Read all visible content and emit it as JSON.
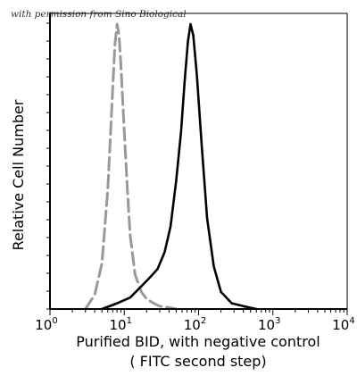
{
  "watermark": "with permission from Sino Biological",
  "colors": {
    "sample": "#000000",
    "control": "#999999",
    "axis": "#000000"
  },
  "chart_data": {
    "type": "line",
    "title": "",
    "xlabel_line1": "Purified  BID,  with negative control",
    "xlabel_line2": "( FITC second step)",
    "ylabel": "Relative Cell Number",
    "x_scale": "log",
    "xlim": [
      1,
      10000
    ],
    "ylim": [
      0,
      1
    ],
    "x_ticks": [
      {
        "value": 1,
        "base": "10",
        "exp": "0"
      },
      {
        "value": 10,
        "base": "10",
        "exp": "1"
      },
      {
        "value": 100,
        "base": "10",
        "exp": "2"
      },
      {
        "value": 1000,
        "base": "10",
        "exp": "3"
      },
      {
        "value": 10000,
        "base": "10",
        "exp": "4"
      }
    ],
    "grid": false,
    "legend": "none",
    "series": [
      {
        "style": "dashed",
        "color": "#999999",
        "x": [
          3,
          4,
          5,
          6,
          7,
          7.5,
          8,
          8.5,
          9,
          10,
          11,
          12,
          14,
          17,
          20,
          25,
          30,
          40,
          50
        ],
        "y": [
          0.0,
          0.05,
          0.16,
          0.42,
          0.78,
          0.93,
          1.0,
          0.96,
          0.86,
          0.62,
          0.42,
          0.26,
          0.12,
          0.06,
          0.035,
          0.02,
          0.01,
          0.005,
          0.0
        ]
      },
      {
        "style": "solid",
        "color": "#000000",
        "x": [
          5,
          8,
          12,
          17,
          22,
          28,
          35,
          42,
          50,
          58,
          65,
          72,
          78,
          85,
          95,
          110,
          130,
          160,
          200,
          280,
          400,
          600
        ],
        "y": [
          0.0,
          0.02,
          0.04,
          0.08,
          0.11,
          0.14,
          0.2,
          0.29,
          0.45,
          0.62,
          0.8,
          0.94,
          1.0,
          0.96,
          0.82,
          0.58,
          0.32,
          0.15,
          0.06,
          0.02,
          0.01,
          0.0
        ]
      }
    ]
  }
}
